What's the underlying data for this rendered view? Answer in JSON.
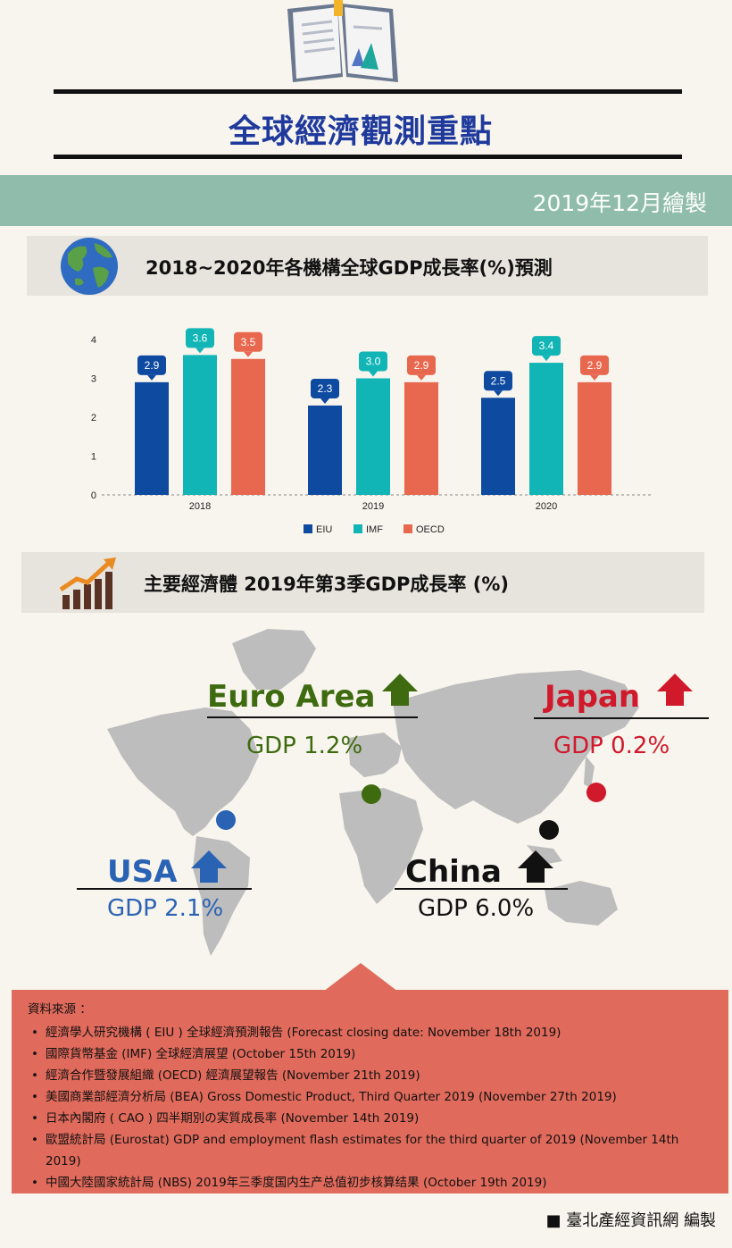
{
  "header": {
    "title": "全球經濟觀測重點",
    "date": "2019年12月繪製"
  },
  "section1": {
    "title": "2018~2020年各機構全球GDP成長率(%)預測",
    "icon": "globe-icon"
  },
  "section2": {
    "title": "主要經濟體 2019年第3季GDP成長率 (%)",
    "icon": "growth-chart-icon"
  },
  "chart_data": {
    "type": "bar",
    "categories": [
      "2018",
      "2019",
      "2020"
    ],
    "series": [
      {
        "name": "EIU",
        "values": [
          2.9,
          2.3,
          2.5
        ],
        "color": "#0e4aa0"
      },
      {
        "name": "IMF",
        "values": [
          3.6,
          3.0,
          3.4
        ],
        "color": "#12b5b6"
      },
      {
        "name": "OECD",
        "values": [
          3.5,
          2.9,
          2.9
        ],
        "color": "#e8684f"
      }
    ],
    "yticks": [
      "0",
      "1",
      "2",
      "3",
      "4"
    ],
    "ylim": [
      0,
      4
    ],
    "grid": false,
    "legend": "bottom"
  },
  "regions": [
    {
      "key": "euro",
      "name": "Euro Area",
      "gdp": "GDP 1.2%",
      "color": "#3e6b10",
      "arrow": "up-arrow-icon"
    },
    {
      "key": "japan",
      "name": "Japan",
      "gdp": "GDP 0.2%",
      "color": "#d0192b",
      "arrow": "up-arrow-icon"
    },
    {
      "key": "usa",
      "name": "USA",
      "gdp": "GDP 2.1%",
      "color": "#2a63b4",
      "arrow": "up-arrow-icon"
    },
    {
      "key": "china",
      "name": "China",
      "gdp": "GDP 6.0%",
      "color": "#111111",
      "arrow": "up-arrow-icon"
    }
  ],
  "sources": {
    "heading": "資料來源 ：",
    "items": [
      "經濟學人研究機構 ( EIU ) 全球經濟預測報告 (Forecast closing date: November 18th 2019)",
      "國際貨幣基金 (IMF) 全球經濟展望 (October 15th 2019)",
      "經濟合作暨發展組織 (OECD) 經濟展望報告 (November 21th 2019)",
      "美國商業部經濟分析局 (BEA) Gross Domestic Product, Third Quarter 2019 (November 27th 2019)",
      "日本內閣府 ( CAO ) 四半期別の実質成長率 (November 14th 2019)",
      "歐盟統計局 (Eurostat) GDP and employment flash estimates for the third quarter of 2019 (November 14th 2019)",
      "中國大陸國家統計局 (NBS) 2019年三季度国内生产总值初步核算结果 (October 19th 2019)"
    ]
  },
  "footer": "■ 臺北產經資訊網   編製"
}
